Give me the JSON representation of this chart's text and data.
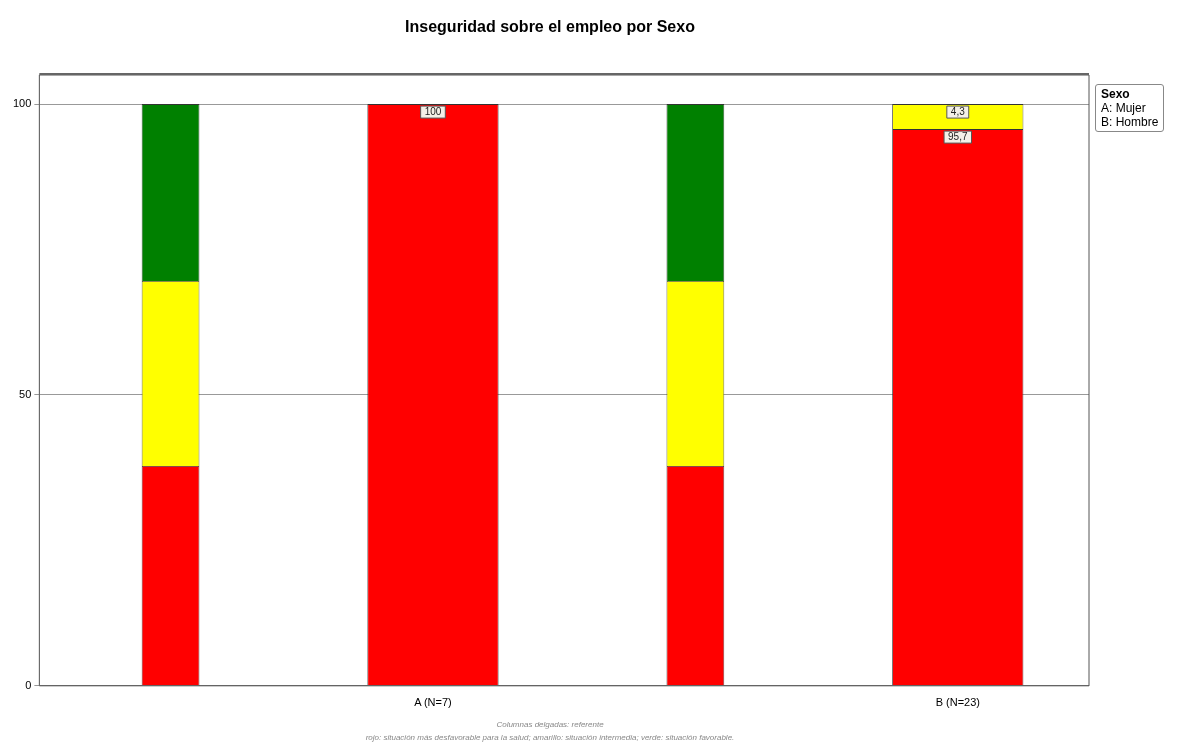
{
  "chart_data": {
    "type": "bar",
    "title": "Inseguridad sobre el empleo por Sexo",
    "legend_title": "Sexo",
    "categories": [
      null,
      "A (N=7)",
      null,
      "B (N=23)"
    ],
    "stacked": true,
    "ylim": [
      0,
      105
    ],
    "yticks": [
      0,
      50,
      100
    ],
    "grid": "y",
    "series": [
      {
        "color": "#ff0000",
        "values": [
          37.8,
          100,
          37.8,
          95.7
        ],
        "value_labels": [
          null,
          "100",
          null,
          "95,7"
        ]
      },
      {
        "color": "#ffff00",
        "values": [
          31.8,
          null,
          31.8,
          4.3
        ],
        "value_labels": [
          null,
          null,
          null,
          "4,3"
        ]
      },
      {
        "color": "#008000",
        "values": [
          30.4,
          null,
          30.4,
          null
        ]
      }
    ],
    "annotations": [
      "A: Mujer",
      "B: Hombre",
      "Columnas delgadas: referente",
      "rojo: situación más desfavorable para la salud; amarillo: situación intermedia; verde: situación favorable."
    ]
  }
}
